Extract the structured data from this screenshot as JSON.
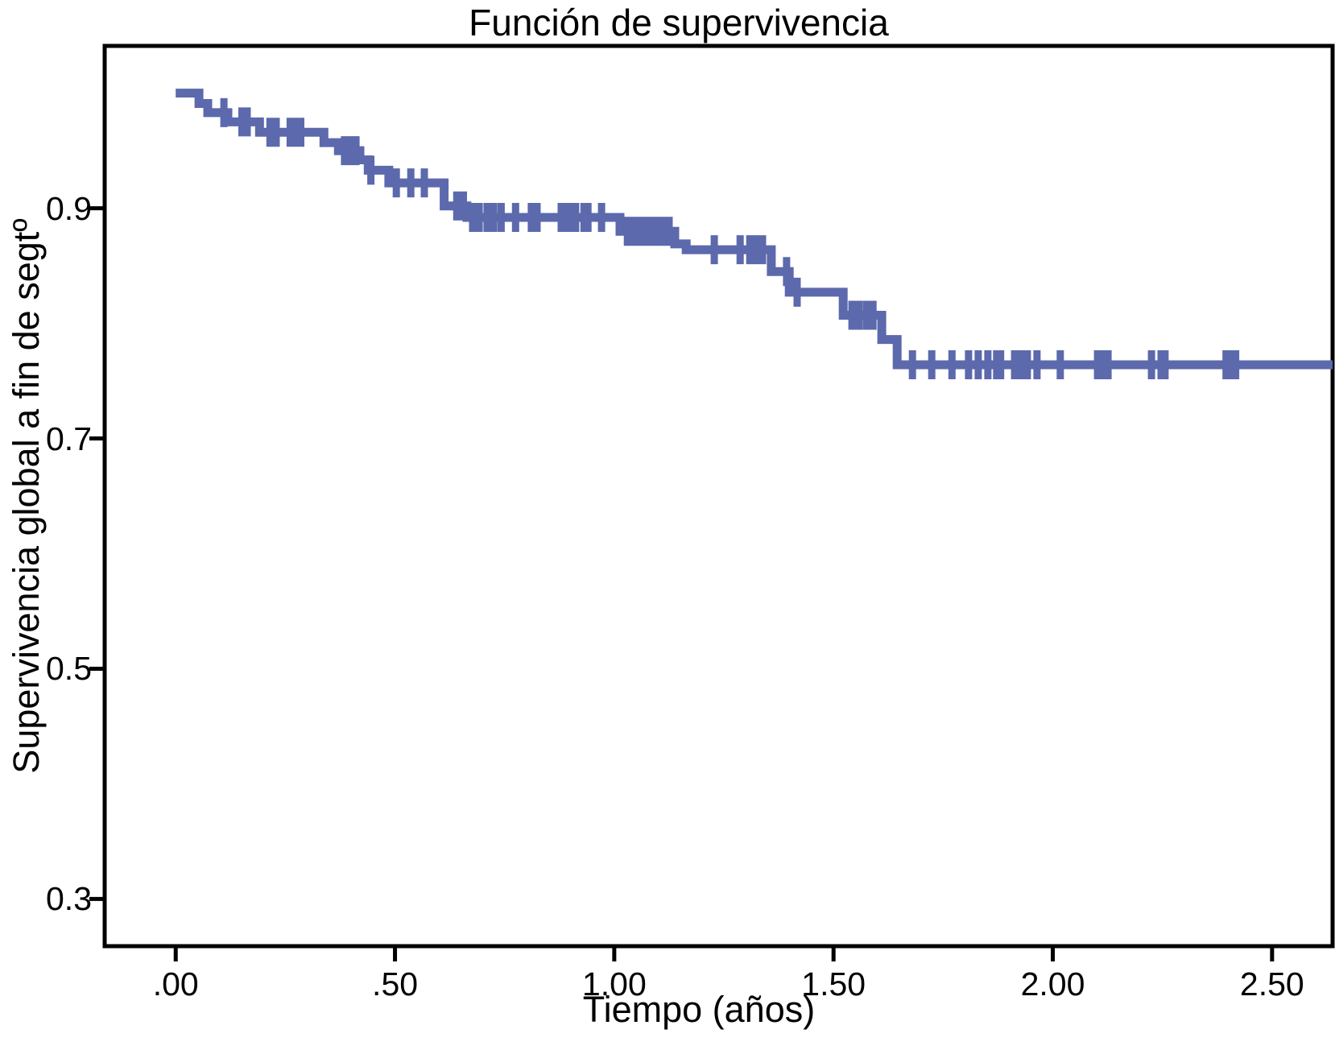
{
  "figure": {
    "title": "Función de supervivencia",
    "x_axis_label": "Tiempo (años)",
    "y_axis_label": "Supervivencia global a fin de segtº"
  },
  "colors": {
    "curve": "#5C69AC",
    "axis": "#000000",
    "text": "#000000",
    "background": "#FFFFFF"
  },
  "chart_data": {
    "type": "line",
    "subtype": "kaplan_meier_step",
    "title": "Función de supervivencia",
    "xlabel": "Tiempo (años)",
    "ylabel": "Supervivencia global a fin de segtº",
    "xlim": [
      -0.162,
      2.638
    ],
    "ylim": [
      0.259,
      1.041
    ],
    "grid": false,
    "legend": false,
    "x_ticks": [
      {
        "label": ".00",
        "value": 0.0
      },
      {
        "label": ".50",
        "value": 0.5
      },
      {
        "label": "1.00",
        "value": 1.0
      },
      {
        "label": "1.50",
        "value": 1.5
      },
      {
        "label": "2.00",
        "value": 2.0
      },
      {
        "label": "2.50",
        "value": 2.5
      }
    ],
    "y_ticks": [
      {
        "label": "0.9",
        "value": 0.9
      },
      {
        "label": "0.7",
        "value": 0.7
      },
      {
        "label": "0.5",
        "value": 0.5
      },
      {
        "label": "0.3",
        "value": 0.3
      }
    ],
    "series": [
      {
        "name": "Función de supervivencia",
        "style": "step_post",
        "segments": [
          {
            "survival": 1.0,
            "t_start": 0.0,
            "t_end": 0.053,
            "censor_times": []
          },
          {
            "survival": 0.991,
            "t_start": 0.053,
            "t_end": 0.073,
            "censor_times": []
          },
          {
            "survival": 0.983,
            "t_start": 0.073,
            "t_end": 0.119,
            "censor_times": [
              0.11
            ]
          },
          {
            "survival": 0.975,
            "t_start": 0.119,
            "t_end": 0.191,
            "censor_times": [
              0.151,
              0.163
            ]
          },
          {
            "survival": 0.966,
            "t_start": 0.191,
            "t_end": 0.338,
            "censor_times": [
              0.215,
              0.229,
              0.261,
              0.275,
              0.285
            ]
          },
          {
            "survival": 0.957,
            "t_start": 0.338,
            "t_end": 0.371,
            "censor_times": []
          },
          {
            "survival": 0.95,
            "t_start": 0.371,
            "t_end": 0.42,
            "censor_times": [
              0.385,
              0.398,
              0.411
            ]
          },
          {
            "survival": 0.942,
            "t_start": 0.42,
            "t_end": 0.439,
            "censor_times": []
          },
          {
            "survival": 0.933,
            "t_start": 0.439,
            "t_end": 0.486,
            "censor_times": [
              0.445
            ]
          },
          {
            "survival": 0.922,
            "t_start": 0.486,
            "t_end": 0.612,
            "censor_times": [
              0.503,
              0.536,
              0.567
            ]
          },
          {
            "survival": 0.902,
            "t_start": 0.612,
            "t_end": 0.664,
            "censor_times": [
              0.641,
              0.656
            ]
          },
          {
            "survival": 0.892,
            "t_start": 0.664,
            "t_end": 1.013,
            "censor_times": [
              0.677,
              0.692,
              0.71,
              0.725,
              0.742,
              0.775,
              0.811,
              0.824,
              0.879,
              0.894,
              0.903,
              0.912,
              0.931,
              0.94,
              0.971
            ]
          },
          {
            "survival": 0.88,
            "t_start": 1.013,
            "t_end": 1.138,
            "censor_times": [
              1.03,
              1.043,
              1.057,
              1.07,
              1.085,
              1.098,
              1.109,
              1.125
            ]
          },
          {
            "survival": 0.869,
            "t_start": 1.138,
            "t_end": 1.164,
            "censor_times": []
          },
          {
            "survival": 0.864,
            "t_start": 1.164,
            "t_end": 1.358,
            "censor_times": [
              1.228,
              1.287,
              1.309,
              1.323,
              1.338
            ]
          },
          {
            "survival": 0.845,
            "t_start": 1.358,
            "t_end": 1.399,
            "censor_times": [
              1.393
            ]
          },
          {
            "survival": 0.827,
            "t_start": 1.399,
            "t_end": 1.522,
            "censor_times": [
              1.417
            ]
          },
          {
            "survival": 0.807,
            "t_start": 1.522,
            "t_end": 1.61,
            "censor_times": [
              1.542,
              1.558,
              1.575,
              1.59
            ]
          },
          {
            "survival": 0.786,
            "t_start": 1.61,
            "t_end": 1.645,
            "censor_times": []
          },
          {
            "survival": 0.764,
            "t_start": 1.645,
            "t_end": 2.638,
            "censor_times": [
              1.68,
              1.724,
              1.77,
              1.808,
              1.83,
              1.852,
              1.872,
              1.881,
              1.913,
              1.924,
              1.931,
              1.942,
              1.964,
              2.017,
              2.102,
              2.116,
              2.126,
              2.225,
              2.247,
              2.256,
              2.395,
              2.405,
              2.417
            ]
          }
        ]
      }
    ]
  }
}
